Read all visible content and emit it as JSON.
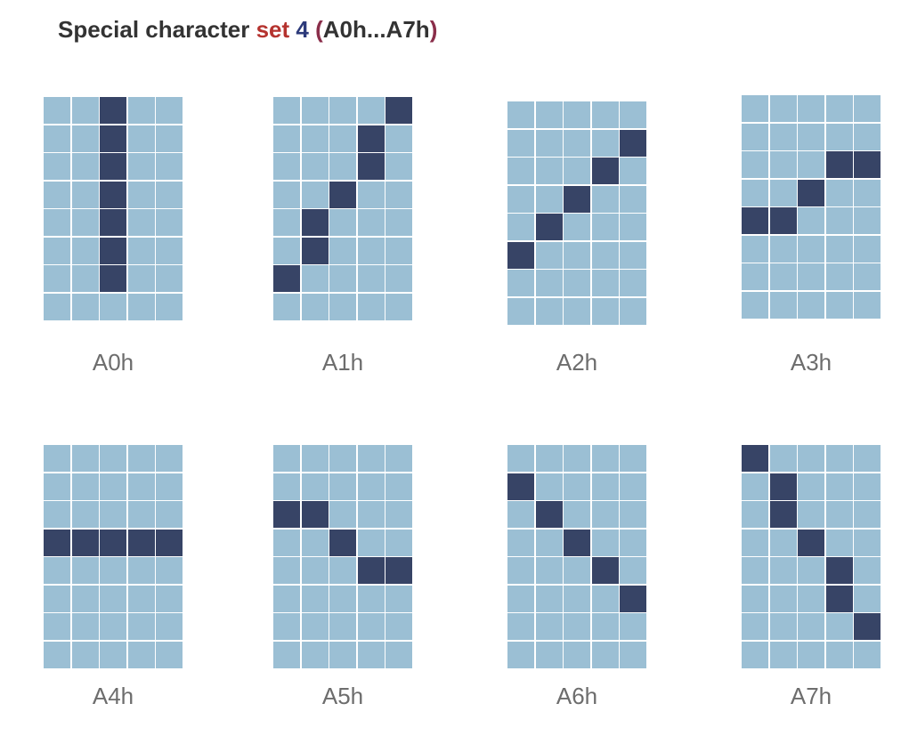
{
  "title": {
    "prefix": "Special character ",
    "set": "set",
    "number": "4",
    "open_paren": "(",
    "range": "A0h...A7h",
    "close_paren": ")"
  },
  "colors": {
    "title_text": "#333333",
    "set_word": "#b5332f",
    "set_number": "#2c3a7a",
    "paren": "#8a2e4a",
    "cell_off": "#9bbfd4",
    "cell_on": "#374466",
    "label_text": "#6d6d6d"
  },
  "glyphs": [
    {
      "label": "A0h",
      "rows": [
        "00100",
        "00100",
        "00100",
        "00100",
        "00100",
        "00100",
        "00100",
        "00000"
      ]
    },
    {
      "label": "A1h",
      "rows": [
        "00001",
        "00010",
        "00010",
        "00100",
        "01000",
        "01000",
        "10000",
        "00000"
      ]
    },
    {
      "label": "A2h",
      "rows": [
        "00000",
        "00001",
        "00010",
        "00100",
        "01000",
        "10000",
        "00000",
        "00000"
      ]
    },
    {
      "label": "A3h",
      "rows": [
        "00000",
        "00000",
        "00011",
        "00100",
        "11000",
        "00000",
        "00000",
        "00000"
      ]
    },
    {
      "label": "A4h",
      "rows": [
        "00000",
        "00000",
        "00000",
        "11111",
        "00000",
        "00000",
        "00000",
        "00000"
      ]
    },
    {
      "label": "A5h",
      "rows": [
        "00000",
        "00000",
        "11000",
        "00100",
        "00011",
        "00000",
        "00000",
        "00000"
      ]
    },
    {
      "label": "A6h",
      "rows": [
        "00000",
        "10000",
        "01000",
        "00100",
        "00010",
        "00001",
        "00000",
        "00000"
      ]
    },
    {
      "label": "A7h",
      "rows": [
        "10000",
        "01000",
        "01000",
        "00100",
        "00010",
        "00010",
        "00001",
        "00000"
      ]
    }
  ]
}
